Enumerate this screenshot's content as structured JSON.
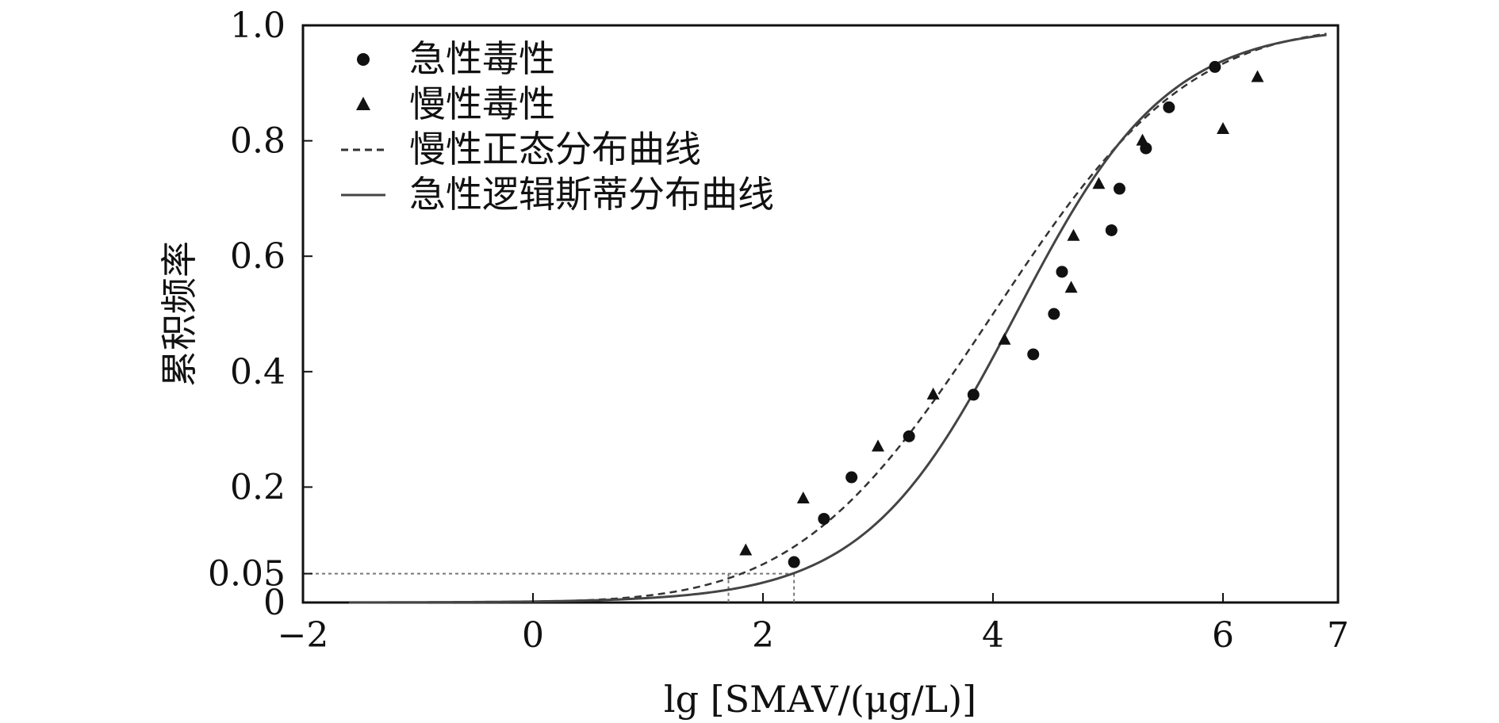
{
  "chart_data": {
    "type": "scatter",
    "title": "",
    "xlabel": "lg [SMAV/(μg/L)]",
    "ylabel": "累积频率",
    "xlim": [
      -2,
      7
    ],
    "ylim": [
      0,
      1.0
    ],
    "x_ticks": [
      -2,
      0,
      2,
      4,
      6,
      7
    ],
    "x_tick_labels": [
      "−2",
      "0",
      "2",
      "4",
      "6",
      "7"
    ],
    "y_ticks": [
      0,
      0.05,
      0.2,
      0.4,
      0.6,
      0.8,
      1.0
    ],
    "y_tick_labels": [
      "0",
      "0.05",
      "0.2",
      "0.4",
      "0.6",
      "0.8",
      "1.0"
    ],
    "grid": false,
    "legend_position": "top-left",
    "colors": {
      "points": "#111111",
      "normal_curve": "#333333",
      "logistic_curve": "#444444",
      "reference_lines": "#777777"
    },
    "series": [
      {
        "name": "急性毒性",
        "kind": "scatter",
        "marker": "circle",
        "points": [
          [
            2.27,
            0.07
          ],
          [
            2.53,
            0.145
          ],
          [
            2.77,
            0.217
          ],
          [
            3.27,
            0.288
          ],
          [
            3.83,
            0.36
          ],
          [
            4.35,
            0.43
          ],
          [
            4.53,
            0.5
          ],
          [
            4.6,
            0.573
          ],
          [
            5.03,
            0.645
          ],
          [
            5.1,
            0.717
          ],
          [
            5.33,
            0.787
          ],
          [
            5.53,
            0.858
          ],
          [
            5.93,
            0.928
          ]
        ]
      },
      {
        "name": "慢性毒性",
        "kind": "scatter",
        "marker": "triangle",
        "points": [
          [
            1.85,
            0.09
          ],
          [
            2.35,
            0.18
          ],
          [
            3.0,
            0.27
          ],
          [
            3.48,
            0.36
          ],
          [
            4.1,
            0.455
          ],
          [
            4.68,
            0.545
          ],
          [
            4.7,
            0.635
          ],
          [
            4.92,
            0.725
          ],
          [
            5.3,
            0.8
          ],
          [
            6.0,
            0.82
          ],
          [
            6.3,
            0.91
          ]
        ]
      },
      {
        "name": "慢性正态分布曲线",
        "kind": "line",
        "style": "dashed",
        "function": "normal_cdf",
        "params": {
          "mean": 4.0,
          "sd": 1.33
        },
        "x_range": [
          -1.6,
          6.9
        ]
      },
      {
        "name": "急性逻辑斯蒂分布曲线",
        "kind": "line",
        "style": "solid",
        "function": "logistic_cdf",
        "params": {
          "location": 4.2,
          "scale": 0.66
        },
        "x_range": [
          -1.6,
          6.9
        ]
      }
    ],
    "reference_lines": {
      "y": 0.05,
      "x": [
        1.7,
        2.27
      ]
    }
  }
}
